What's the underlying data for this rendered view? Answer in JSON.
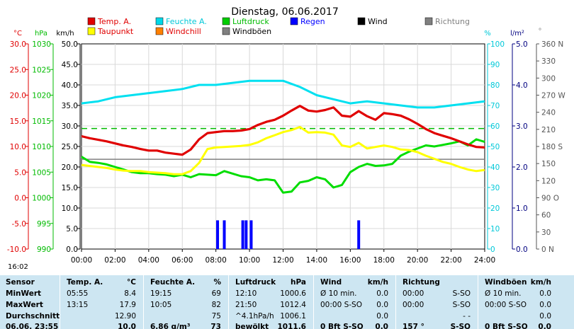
{
  "chart_data": {
    "type": "line",
    "title": "Dienstag, 06.06.2017",
    "x_ticks": [
      "00:00",
      "02:00",
      "04:00",
      "06:00",
      "08:00",
      "10:00",
      "12:00",
      "14:00",
      "16:00",
      "18:00",
      "20:00",
      "22:00",
      "24:00"
    ],
    "axes": {
      "temp": {
        "unit": "°C",
        "ticks": [
          "30.0",
          "25.0",
          "20.0",
          "15.0",
          "10.0",
          "5.0",
          "0.0",
          "-5.0",
          "-10.0"
        ],
        "color": "#e00000"
      },
      "pressure": {
        "unit": "hPa",
        "ticks": [
          "1030",
          "1025",
          "1020",
          "1015",
          "1010",
          "1005",
          "1000",
          "995",
          "990"
        ],
        "color": "#00bb00"
      },
      "wind": {
        "unit": "km/h",
        "ticks": [
          "50.0",
          "45.0",
          "40.0",
          "35.0",
          "30.0",
          "25.0",
          "20.0",
          "15.0",
          "10.0",
          "5.0",
          "0.0"
        ],
        "color": "#000000"
      },
      "humidity": {
        "unit": "%",
        "ticks": [
          "100",
          "90",
          "80",
          "70",
          "60",
          "50",
          "40",
          "30",
          "20",
          "10",
          "0"
        ],
        "color": "#00c8d8"
      },
      "rain": {
        "unit": "l/m²",
        "ticks": [
          "5.0",
          "4.0",
          "3.0",
          "2.0",
          "1.0",
          "0.0"
        ],
        "color": "#000080"
      },
      "direction": {
        "unit": "°",
        "ticks": [
          "360 N",
          "330",
          "300",
          "270 W",
          "240",
          "210",
          "180 S",
          "150",
          "120",
          "90 O",
          "60",
          "30",
          "0 N"
        ],
        "color": "#555555"
      }
    },
    "legend": [
      {
        "name": "Temp. A.",
        "color": "#e00000"
      },
      {
        "name": "Feuchte A.",
        "color": "#00d8e8"
      },
      {
        "name": "Luftdruck",
        "color": "#00cc00"
      },
      {
        "name": "Regen",
        "color": "#0000ff"
      },
      {
        "name": "Wind",
        "color": "#000000"
      },
      {
        "name": "Richtung",
        "color": "#808080"
      },
      {
        "name": "Taupunkt",
        "color": "#ffff00"
      },
      {
        "name": "Windchill",
        "color": "#ff8000"
      },
      {
        "name": "Windböen",
        "color": "#808080"
      }
    ],
    "series": [
      {
        "name": "Temp. A.",
        "axis": "temp",
        "x": [
          0,
          0.5,
          1,
          1.5,
          2,
          2.5,
          3,
          3.5,
          4,
          4.5,
          5,
          5.5,
          6,
          6.5,
          7,
          7.5,
          8,
          8.5,
          9,
          9.5,
          10,
          10.5,
          11,
          11.5,
          12,
          12.5,
          13,
          13.5,
          14,
          14.5,
          15,
          15.5,
          16,
          16.5,
          17,
          17.5,
          18,
          18.5,
          19,
          19.5,
          20,
          20.5,
          21,
          21.5,
          22,
          22.5,
          23,
          23.5,
          24
        ],
        "values": [
          12.0,
          11.6,
          11.3,
          11.0,
          10.6,
          10.2,
          9.9,
          9.5,
          9.2,
          9.2,
          8.8,
          8.6,
          8.4,
          9.4,
          11.4,
          12.6,
          12.8,
          13.0,
          13.0,
          13.1,
          13.4,
          14.2,
          14.8,
          15.2,
          16.0,
          17.0,
          17.9,
          17.0,
          16.8,
          17.1,
          17.6,
          16.0,
          15.8,
          16.9,
          15.9,
          15.2,
          16.5,
          16.3,
          16.0,
          15.3,
          14.4,
          13.4,
          12.6,
          12.1,
          11.6,
          11.0,
          10.4,
          9.9,
          9.8
        ]
      },
      {
        "name": "Feuchte A.",
        "axis": "humidity",
        "x": [
          0,
          1,
          2,
          3,
          4,
          5,
          6,
          7,
          8,
          9,
          10,
          11,
          12,
          13,
          14,
          15,
          16,
          17,
          18,
          19,
          20,
          21,
          22,
          23,
          24
        ],
        "values": [
          71,
          72,
          74,
          75,
          76,
          77,
          78,
          80,
          80,
          81,
          82,
          82,
          82,
          79,
          75,
          73,
          71,
          72,
          71,
          70,
          69,
          69,
          70,
          71,
          72
        ]
      },
      {
        "name": "Luftdruck",
        "axis": "pressure",
        "x": [
          0,
          0.5,
          1,
          1.5,
          2,
          2.5,
          3,
          3.5,
          4,
          4.5,
          5,
          5.5,
          6,
          6.5,
          7,
          7.5,
          8,
          8.5,
          9,
          9.5,
          10,
          10.5,
          11,
          11.5,
          12,
          12.5,
          13,
          13.5,
          14,
          14.5,
          15,
          15.5,
          16,
          16.5,
          17,
          17.5,
          18,
          18.5,
          19,
          19.5,
          20,
          20.5,
          21,
          21.5,
          22,
          22.5,
          23,
          23.5,
          24
        ],
        "values": [
          1008.0,
          1007.0,
          1006.8,
          1006.5,
          1006.0,
          1005.5,
          1005.0,
          1004.8,
          1004.8,
          1004.6,
          1004.5,
          1004.2,
          1004.5,
          1004.0,
          1004.6,
          1004.5,
          1004.4,
          1005.2,
          1004.7,
          1004.2,
          1004.0,
          1003.4,
          1003.6,
          1003.4,
          1001.0,
          1001.2,
          1003.0,
          1003.3,
          1004.0,
          1003.6,
          1002.0,
          1002.5,
          1005.0,
          1006.0,
          1006.6,
          1006.2,
          1006.3,
          1006.6,
          1008.2,
          1009.0,
          1009.6,
          1010.2,
          1010.0,
          1010.3,
          1010.6,
          1011.0,
          1010.2,
          1011.4,
          1010.9
        ]
      },
      {
        "name": "Taupunkt",
        "axis": "temp",
        "x": [
          0,
          0.5,
          1,
          1.5,
          2,
          2.5,
          3,
          3.5,
          4,
          4.5,
          5,
          5.5,
          6,
          6.5,
          7,
          7.5,
          8,
          8.5,
          9,
          9.5,
          10,
          10.5,
          11,
          11.5,
          12,
          12.5,
          13,
          13.5,
          14,
          14.5,
          15,
          15.5,
          16,
          16.5,
          17,
          17.5,
          18,
          18.5,
          19,
          19.5,
          20,
          20.5,
          21,
          21.5,
          22,
          22.5,
          23,
          23.5,
          24
        ],
        "values": [
          6.4,
          6.2,
          6.0,
          5.8,
          5.5,
          5.3,
          5.2,
          5.2,
          5.0,
          4.9,
          4.8,
          4.6,
          4.6,
          5.2,
          6.8,
          9.5,
          9.8,
          9.9,
          10.0,
          10.1,
          10.3,
          10.8,
          11.6,
          12.2,
          12.8,
          13.2,
          13.8,
          12.7,
          12.8,
          12.7,
          12.3,
          10.2,
          9.9,
          10.7,
          9.6,
          9.9,
          10.2,
          9.9,
          9.4,
          9.3,
          8.9,
          8.2,
          7.6,
          7.0,
          6.6,
          6.0,
          5.5,
          5.2,
          5.4
        ]
      },
      {
        "name": "Regen",
        "axis": "rain",
        "type": "bar",
        "x": [
          8.1,
          8.5,
          9.6,
          9.8,
          10.1,
          16.5
        ],
        "values": [
          0.7,
          0.7,
          0.7,
          0.7,
          0.7,
          0.7
        ]
      }
    ],
    "reference_lines": [
      {
        "axis": "temp",
        "value": 13.5,
        "color": "#00bb00",
        "style": "dashed"
      },
      {
        "axis": "temp",
        "value": 7.5,
        "color": "#808080",
        "style": "solid"
      }
    ],
    "grid": true,
    "legend_position": "top"
  },
  "time_label": "16:02",
  "footer": {
    "row_labels": [
      "Sensor",
      "MinWert",
      "MaxWert",
      "Durchschnitt",
      "06.06. 23:55"
    ],
    "columns": [
      {
        "name": "Temp. A.",
        "unit": "°C",
        "rows": [
          [
            "05:55",
            "8.4"
          ],
          [
            "13:15",
            "17.9"
          ],
          [
            "",
            "12.90"
          ],
          [
            "",
            "10.0"
          ]
        ]
      },
      {
        "name": "Feuchte A.",
        "unit": "%",
        "rows": [
          [
            "19:15",
            "69"
          ],
          [
            "10:05",
            "82"
          ],
          [
            "",
            "75"
          ],
          [
            "6.86 g/m³",
            "73"
          ]
        ]
      },
      {
        "name": "Luftdruck",
        "unit": "hPa",
        "rows": [
          [
            "12:10",
            "1000.6"
          ],
          [
            "21:50",
            "1012.4"
          ],
          [
            "^4.1hPa/h",
            "1006.1"
          ],
          [
            "bewölkt",
            "1011.6"
          ]
        ]
      },
      {
        "name": "Wind",
        "unit": "km/h",
        "rows": [
          [
            "Ø 10 min.",
            "0.0"
          ],
          [
            "00:00  S-SO",
            "0.0"
          ],
          [
            "",
            "0.0"
          ],
          [
            "0 Bft S-SO",
            "0.0"
          ]
        ]
      },
      {
        "name": "Richtung",
        "unit": "",
        "rows": [
          [
            "00:00",
            "S-SO"
          ],
          [
            "00:00",
            "S-SO"
          ],
          [
            "",
            "- -"
          ],
          [
            "157 °",
            "S-SO"
          ]
        ]
      },
      {
        "name": "Windböen",
        "unit": "km/h",
        "rows": [
          [
            "Ø 10 min.",
            "0.0"
          ],
          [
            "00:00  S-SO",
            "0.0"
          ],
          [
            "",
            "0.0"
          ],
          [
            "0 Bft S-SO",
            "0.0"
          ]
        ]
      }
    ]
  }
}
